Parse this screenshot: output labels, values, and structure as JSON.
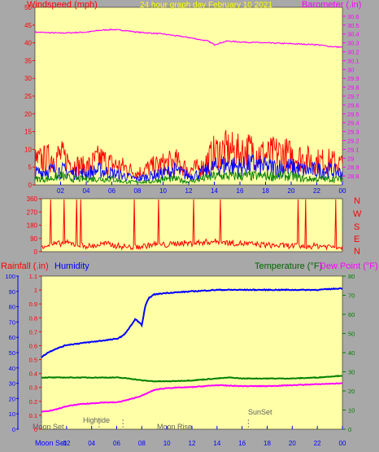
{
  "header": {
    "left_label": "Windspeed (mph)",
    "center_label": "24 hour graph day   February 10 2021",
    "right_label": "Barometer (.in)"
  },
  "bottom_header": {
    "rainfall_label": "Rainfall (.in)",
    "humidity_label": "Humidity",
    "temperature_label": "Temperature (°F)",
    "dewpoint_label": "Dew Point (°F)"
  },
  "direction_labels": [
    "N",
    "W",
    "S",
    "E",
    "N"
  ],
  "annotations": {
    "moon_set_top": "Moon Set",
    "moon_set_axis": "Moon Set",
    "hightide": "Hightide",
    "moon_rise": "Moon Rise",
    "sunset": "SunSet"
  },
  "colors": {
    "frame": "#a8a8a8",
    "plot_bg": "#ffffa8",
    "red": "#ff0000",
    "blue": "#0000ff",
    "green": "#008000",
    "magenta": "#ff00ff",
    "yellow_text": "#ffff00",
    "dark_green_text": "#006400"
  },
  "chart_data": [
    {
      "type": "line",
      "panel": "top",
      "x_ticks": [
        "02",
        "04",
        "06",
        "08",
        "10",
        "12",
        "14",
        "16",
        "18",
        "20",
        "22",
        "00"
      ],
      "x_range_hours": [
        0,
        24
      ],
      "ylim_left": [
        0,
        50
      ],
      "y_ticks_left": [
        "0",
        "5",
        "10",
        "15",
        "20",
        "25",
        "30",
        "35",
        "40",
        "45",
        "50"
      ],
      "ylim_right": [
        28.7,
        30.7
      ],
      "y_ticks_right": [
        "28.8",
        "28.9",
        "29",
        "29.1",
        "29.2",
        "29.3",
        "29.4",
        "29.5",
        "29.6",
        "29.7",
        "29.8",
        "29.9",
        "30",
        "30.1",
        "30.2",
        "30.3",
        "30.4",
        "30.5",
        "30.6"
      ],
      "series": [
        {
          "axis": "right",
          "color": "#ff00ff",
          "x": [
            0,
            2,
            4,
            5,
            6,
            7,
            8,
            10,
            12,
            13.5,
            14,
            15,
            16,
            18,
            20,
            22,
            23,
            24
          ],
          "values": [
            30.42,
            30.41,
            30.42,
            30.44,
            30.45,
            30.44,
            30.42,
            30.4,
            30.36,
            30.32,
            30.28,
            30.32,
            30.31,
            30.3,
            30.29,
            30.28,
            30.26,
            30.25
          ]
        },
        {
          "axis": "left",
          "color": "#ff0000",
          "x": [
            0,
            1,
            2,
            3,
            4,
            5,
            6,
            7,
            8,
            9,
            10,
            11,
            12,
            13,
            14,
            15,
            16,
            17,
            18,
            19,
            20,
            21,
            22,
            23,
            24
          ],
          "values": [
            8,
            9,
            10,
            7,
            6,
            9,
            7,
            6,
            4,
            6,
            7,
            8,
            5,
            6,
            11,
            12,
            11,
            12,
            10,
            11,
            10,
            9,
            8,
            8,
            7
          ]
        },
        {
          "axis": "left",
          "color": "#0000ff",
          "x": [
            0,
            1,
            2,
            3,
            4,
            5,
            6,
            7,
            8,
            9,
            10,
            11,
            12,
            13,
            14,
            15,
            16,
            17,
            18,
            19,
            20,
            21,
            22,
            23,
            24
          ],
          "values": [
            4,
            5,
            5,
            4,
            4,
            5,
            4,
            3,
            2,
            3,
            4,
            5,
            3,
            4,
            6,
            7,
            6,
            7,
            6,
            6,
            6,
            5,
            5,
            5,
            4
          ]
        },
        {
          "axis": "left",
          "color": "#008000",
          "x": [
            0,
            1,
            2,
            3,
            4,
            5,
            6,
            7,
            8,
            9,
            10,
            11,
            12,
            13,
            14,
            15,
            16,
            17,
            18,
            19,
            20,
            21,
            22,
            23,
            24
          ],
          "values": [
            2,
            2,
            3,
            2,
            2,
            2,
            2,
            1,
            1,
            1,
            2,
            2,
            1,
            2,
            3,
            3,
            3,
            3,
            3,
            3,
            3,
            2,
            2,
            2,
            2
          ]
        }
      ]
    },
    {
      "type": "line",
      "panel": "direction",
      "ylim": [
        0,
        360
      ],
      "y_ticks": [
        "0",
        "90",
        "180",
        "270",
        "360"
      ],
      "series": [
        {
          "color": "#ff0000",
          "x": [
            0,
            1,
            2,
            3,
            4,
            5,
            6,
            7,
            8,
            9,
            10,
            11,
            12,
            13,
            14,
            15,
            16,
            17,
            18,
            19,
            20,
            21,
            22,
            23,
            24
          ],
          "values": [
            40,
            50,
            60,
            45,
            35,
            55,
            40,
            30,
            35,
            50,
            45,
            60,
            55,
            65,
            70,
            60,
            55,
            50,
            45,
            40,
            40,
            35,
            40,
            35,
            30
          ]
        }
      ]
    },
    {
      "type": "line",
      "panel": "bottom",
      "x_ticks": [
        "02",
        "04",
        "06",
        "08",
        "10",
        "12",
        "14",
        "16",
        "18",
        "20",
        "22",
        "00"
      ],
      "ylim_humidity": [
        0,
        100
      ],
      "y_ticks_humidity": [
        "0",
        "10",
        "20",
        "30",
        "40",
        "50",
        "60",
        "70",
        "80",
        "90",
        "100"
      ],
      "ylim_rain": [
        0,
        1.1
      ],
      "y_ticks_rain": [
        "0",
        "0.1",
        "0.2",
        "0.3",
        "0.4",
        "0.5",
        "0.6",
        "0.7",
        "0.8",
        "0.9",
        "1",
        "1.1"
      ],
      "ylim_temp": [
        0,
        80
      ],
      "y_ticks_temp": [
        "0",
        "10",
        "20",
        "30",
        "40",
        "50",
        "60",
        "70",
        "80"
      ],
      "series": [
        {
          "color": "#0000ff",
          "axis": "humidity",
          "x": [
            0,
            0.5,
            1,
            2,
            3,
            4,
            5,
            6,
            6.5,
            7,
            7.5,
            8,
            8.3,
            8.6,
            9,
            10,
            12,
            14,
            16,
            18,
            20,
            22,
            23,
            24
          ],
          "values": [
            47,
            50,
            52,
            55,
            56,
            57,
            58,
            59,
            61,
            66,
            72,
            68,
            81,
            86,
            88,
            89,
            90,
            91,
            91,
            91,
            91,
            91,
            91.5,
            92
          ]
        },
        {
          "color": "#008000",
          "axis": "temp",
          "x": [
            0,
            2,
            4,
            6,
            7,
            8,
            9,
            10,
            12,
            14,
            15,
            16,
            18,
            20,
            22,
            24
          ],
          "values": [
            27,
            27,
            27,
            27,
            26.5,
            25.5,
            25,
            25,
            25.5,
            26.5,
            27,
            26.5,
            26.5,
            26.5,
            27,
            28
          ]
        },
        {
          "color": "#ff00ff",
          "axis": "temp",
          "x": [
            0,
            1,
            2,
            3,
            4,
            5,
            6,
            7,
            8,
            9,
            10,
            12,
            14,
            16,
            18,
            20,
            22,
            24
          ],
          "values": [
            9,
            10,
            12,
            13,
            13.5,
            14,
            14,
            15.5,
            17.5,
            20.5,
            21.5,
            22,
            23,
            22.5,
            22.5,
            23,
            23.5,
            24
          ]
        }
      ]
    }
  ]
}
